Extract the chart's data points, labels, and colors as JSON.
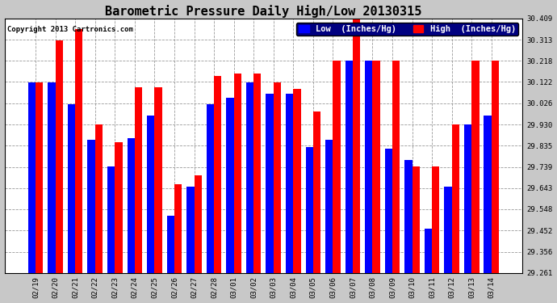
{
  "title": "Barometric Pressure Daily High/Low 20130315",
  "copyright": "Copyright 2013 Cartronics.com",
  "legend_low": "Low  (Inches/Hg)",
  "legend_high": "High  (Inches/Hg)",
  "categories": [
    "02/19",
    "02/20",
    "02/21",
    "02/22",
    "02/23",
    "02/24",
    "02/25",
    "02/26",
    "02/27",
    "02/28",
    "03/01",
    "03/02",
    "03/03",
    "03/04",
    "03/05",
    "03/06",
    "03/07",
    "03/08",
    "03/09",
    "03/10",
    "03/11",
    "03/12",
    "03/13",
    "03/14"
  ],
  "low_values": [
    30.12,
    30.12,
    30.02,
    29.86,
    29.74,
    29.87,
    29.97,
    29.52,
    29.65,
    30.02,
    30.05,
    30.12,
    30.07,
    30.07,
    29.83,
    29.86,
    30.22,
    30.22,
    29.82,
    29.77,
    29.46,
    29.65,
    29.93,
    29.97
  ],
  "high_values": [
    30.12,
    30.31,
    30.36,
    29.93,
    29.85,
    30.1,
    30.1,
    29.66,
    29.7,
    30.15,
    30.16,
    30.16,
    30.12,
    30.09,
    29.99,
    30.22,
    30.41,
    30.22,
    30.22,
    29.74,
    29.74,
    29.93,
    30.22,
    30.22
  ],
  "ymin": 29.261,
  "ymax": 30.409,
  "yticks": [
    29.261,
    29.356,
    29.452,
    29.548,
    29.643,
    29.739,
    29.835,
    29.93,
    30.026,
    30.122,
    30.218,
    30.313,
    30.409
  ],
  "bg_color": "#c8c8c8",
  "plot_bg_color": "#ffffff",
  "low_color": "#0000ff",
  "high_color": "#ff0000",
  "bar_width": 0.38,
  "title_fontsize": 11,
  "tick_fontsize": 6.5,
  "legend_fontsize": 7.5,
  "figsize": [
    6.9,
    3.75
  ],
  "dpi": 100
}
